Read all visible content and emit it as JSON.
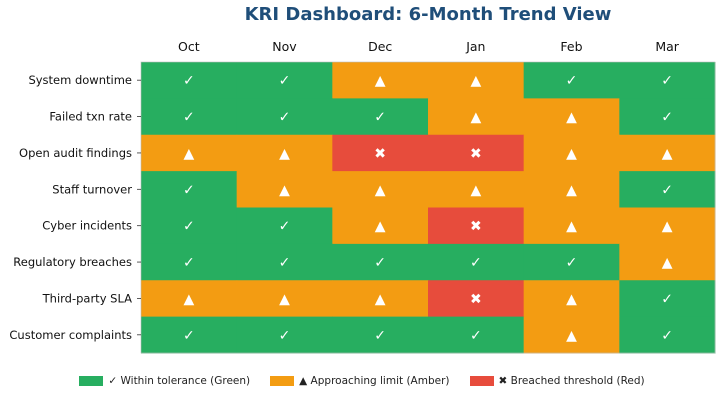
{
  "chart_data": {
    "type": "heatmap",
    "title": "KRI Dashboard: 6-Month Trend View",
    "months": [
      "Oct",
      "Nov",
      "Dec",
      "Jan",
      "Feb",
      "Mar"
    ],
    "rows": [
      "System downtime",
      "Failed txn rate",
      "Open audit findings",
      "Staff turnover",
      "Cyber incidents",
      "Regulatory breaches",
      "Third-party SLA",
      "Customer complaints"
    ],
    "values": [
      [
        "G",
        "G",
        "A",
        "A",
        "G",
        "G"
      ],
      [
        "G",
        "G",
        "G",
        "A",
        "A",
        "G"
      ],
      [
        "A",
        "A",
        "R",
        "R",
        "A",
        "A"
      ],
      [
        "G",
        "A",
        "A",
        "A",
        "A",
        "G"
      ],
      [
        "G",
        "G",
        "A",
        "R",
        "A",
        "A"
      ],
      [
        "G",
        "G",
        "G",
        "G",
        "G",
        "A"
      ],
      [
        "A",
        "A",
        "A",
        "R",
        "A",
        "G"
      ],
      [
        "G",
        "G",
        "G",
        "G",
        "A",
        "G"
      ]
    ],
    "statuses": {
      "G": {
        "symbol": "✓",
        "color": "#27ae60"
      },
      "A": {
        "symbol": "▲",
        "color": "#f39c12"
      },
      "R": {
        "symbol": "✖",
        "color": "#e74c3c"
      }
    },
    "legend": [
      {
        "key": "G",
        "label": "✓ Within tolerance (Green)",
        "color": "#27ae60"
      },
      {
        "key": "A",
        "label": "▲ Approaching limit (Amber)",
        "color": "#f39c12"
      },
      {
        "key": "R",
        "label": "✖ Breached threshold (Red)",
        "color": "#e74c3c"
      }
    ],
    "legend_position": "bottom"
  }
}
